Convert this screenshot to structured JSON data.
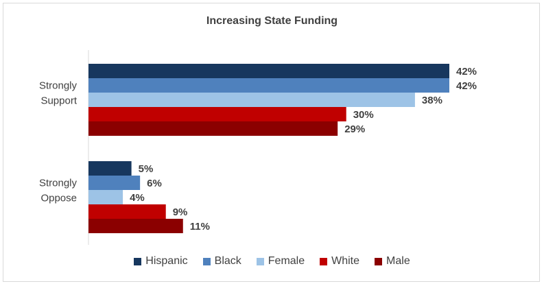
{
  "chart_data": {
    "type": "bar",
    "orientation": "horizontal",
    "title": "Increasing State Funding",
    "categories": [
      "Strongly Support",
      "Strongly Oppose"
    ],
    "category_lines": [
      [
        "Strongly",
        "Support"
      ],
      [
        "Strongly",
        "Oppose"
      ]
    ],
    "series": [
      {
        "name": "Hispanic",
        "color": "#17375e",
        "values": [
          42,
          5
        ],
        "labels": [
          "42%",
          "5%"
        ]
      },
      {
        "name": "Black",
        "color": "#4f81bd",
        "values": [
          42,
          6
        ],
        "labels": [
          "42%",
          "6%"
        ]
      },
      {
        "name": "Female",
        "color": "#9dc3e6",
        "values": [
          38,
          4
        ],
        "labels": [
          "38%",
          "4%"
        ]
      },
      {
        "name": "White",
        "color": "#c00000",
        "values": [
          30,
          9
        ],
        "labels": [
          "30%",
          "9%"
        ]
      },
      {
        "name": "Male",
        "color": "#8b0000",
        "values": [
          29,
          11
        ],
        "labels": [
          "29%",
          "11%"
        ]
      }
    ],
    "xlim": [
      0,
      42
    ],
    "legend_position": "bottom",
    "grid": false
  }
}
